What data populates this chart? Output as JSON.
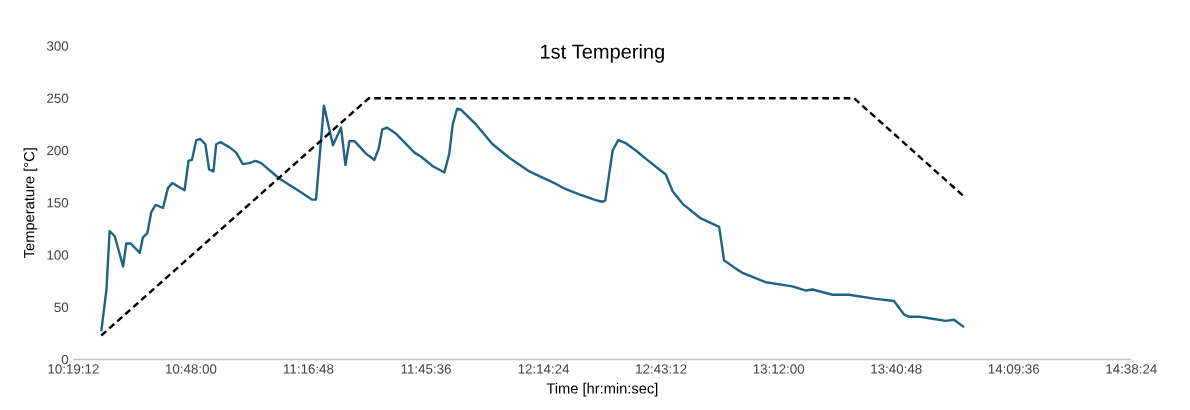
{
  "chart_data": {
    "type": "line",
    "title": "1st Tempering",
    "xlabel": "Time [hr:min:sec]",
    "ylabel": "Temperature [°C]",
    "xlim": [
      10.32,
      14.64
    ],
    "ylim": [
      0,
      300
    ],
    "xticks": [
      {
        "value": 10.32,
        "label": "10:19:12"
      },
      {
        "value": 10.8,
        "label": "10:48:00"
      },
      {
        "value": 11.28,
        "label": "11:16:48"
      },
      {
        "value": 11.76,
        "label": "11:45:36"
      },
      {
        "value": 12.24,
        "label": "12:14:24"
      },
      {
        "value": 12.72,
        "label": "12:43:12"
      },
      {
        "value": 13.2,
        "label": "13:12:00"
      },
      {
        "value": 13.68,
        "label": "13:40:48"
      },
      {
        "value": 14.16,
        "label": "14:09:36"
      },
      {
        "value": 14.64,
        "label": "14:38:24"
      }
    ],
    "yticks": [
      0,
      50,
      100,
      150,
      200,
      250,
      300
    ],
    "grid": false,
    "marker": "none",
    "series": [
      {
        "color": "#1f6485",
        "line_style": "solid",
        "x": [
          10.434,
          10.455,
          10.468,
          10.489,
          10.523,
          10.536,
          10.554,
          10.591,
          10.604,
          10.622,
          10.638,
          10.656,
          10.686,
          10.706,
          10.724,
          10.774,
          10.79,
          10.804,
          10.822,
          10.838,
          10.859,
          10.874,
          10.892,
          10.903,
          10.921,
          10.958,
          10.985,
          11.012,
          11.039,
          11.064,
          11.087,
          11.162,
          11.243,
          11.295,
          11.311,
          11.343,
          11.38,
          11.413,
          11.431,
          11.447,
          11.468,
          11.515,
          11.549,
          11.567,
          11.581,
          11.6,
          11.638,
          11.713,
          11.74,
          11.788,
          11.835,
          11.855,
          11.869,
          11.887,
          11.903,
          11.964,
          12.032,
          12.1,
          12.182,
          12.236,
          12.291,
          12.331,
          12.386,
          12.447,
          12.478,
          12.492,
          12.522,
          12.545,
          12.576,
          12.617,
          12.658,
          12.739,
          12.767,
          12.808,
          12.882,
          12.957,
          12.977,
          13.025,
          13.052,
          13.093,
          13.147,
          13.256,
          13.311,
          13.338,
          13.42,
          13.487,
          13.596,
          13.671,
          13.712,
          13.732,
          13.773,
          13.828,
          13.882,
          13.916,
          13.957
        ],
        "values": [
          27,
          67,
          123,
          118,
          89,
          111,
          111,
          102,
          117,
          121,
          141,
          148,
          145,
          164,
          169,
          162,
          190,
          191,
          210,
          211,
          206,
          182,
          180,
          206,
          208,
          203,
          198,
          187,
          188,
          190,
          188,
          173,
          161,
          153,
          153,
          243,
          205,
          222,
          186,
          209,
          209,
          197,
          191,
          202,
          220,
          222,
          216,
          198,
          194,
          185,
          179,
          197,
          225,
          240,
          239,
          225,
          206,
          193,
          180,
          174,
          168,
          163,
          158,
          153,
          151,
          152,
          200,
          210,
          207,
          200,
          192,
          177,
          161,
          149,
          135,
          127,
          95,
          87,
          83,
          79,
          74,
          70,
          66,
          67,
          62,
          62,
          58,
          56,
          43,
          41,
          41,
          39,
          37,
          38,
          31
        ]
      },
      {
        "color": "#000000",
        "line_style": "dashed",
        "x": [
          10.434,
          11.526,
          13.508,
          13.957
        ],
        "values": [
          23,
          250,
          250,
          156
        ]
      }
    ]
  }
}
